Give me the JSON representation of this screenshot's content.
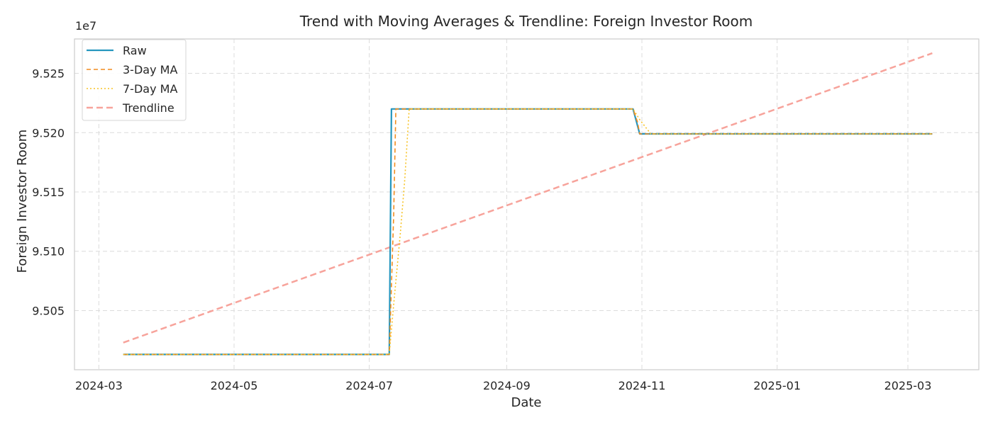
{
  "chart_data": {
    "type": "line",
    "title": "Trend with Moving Averages & Trendline: Foreign Investor Room",
    "xlabel": "Date",
    "ylabel": "Foreign Investor Room",
    "offset_text": "1e7",
    "x_ticks": [
      "2024-03",
      "2024-05",
      "2024-07",
      "2024-09",
      "2024-11",
      "2025-01",
      "2025-03"
    ],
    "y_ticks": [
      "9.505",
      "9.510",
      "9.515",
      "9.520",
      "9.525"
    ],
    "y_tick_values": [
      95050000,
      95100000,
      95150000,
      95200000,
      95250000
    ],
    "xlim": [
      "2024-02-19",
      "2025-04-02"
    ],
    "ylim": [
      95000100,
      95279000
    ],
    "grid": true,
    "legend_position": "top-left",
    "series": [
      {
        "name": "Raw",
        "color": "#2596be",
        "style": "solid",
        "points": [
          [
            "2024-03-12",
            95013000
          ],
          [
            "2024-07-10",
            95013000
          ],
          [
            "2024-07-11",
            95220000
          ],
          [
            "2024-10-28",
            95220000
          ],
          [
            "2024-10-31",
            95199000
          ],
          [
            "2025-03-12",
            95199000
          ]
        ]
      },
      {
        "name": "3-Day MA",
        "color": "#f28c1e",
        "style": "dashed",
        "points": [
          [
            "2024-03-12",
            95013000
          ],
          [
            "2024-07-10",
            95013000
          ],
          [
            "2024-07-12",
            95130000
          ],
          [
            "2024-07-13",
            95220000
          ],
          [
            "2024-10-28",
            95220000
          ],
          [
            "2024-10-30",
            95209000
          ],
          [
            "2024-10-31",
            95199000
          ],
          [
            "2025-03-12",
            95199000
          ]
        ]
      },
      {
        "name": "7-Day MA",
        "color": "#f7c325",
        "style": "dotted",
        "points": [
          [
            "2024-03-12",
            95013000
          ],
          [
            "2024-07-10",
            95013000
          ],
          [
            "2024-07-12",
            95055000
          ],
          [
            "2024-07-15",
            95115000
          ],
          [
            "2024-07-17",
            95160000
          ],
          [
            "2024-07-19",
            95220000
          ],
          [
            "2024-10-28",
            95220000
          ],
          [
            "2024-10-31",
            95211000
          ],
          [
            "2024-11-05",
            95199000
          ],
          [
            "2025-03-12",
            95199000
          ]
        ]
      },
      {
        "name": "Trendline",
        "color": "#f7a39b",
        "style": "dashed-long",
        "points": [
          [
            "2024-03-12",
            95023000
          ],
          [
            "2025-03-12",
            95267000
          ]
        ]
      }
    ]
  }
}
